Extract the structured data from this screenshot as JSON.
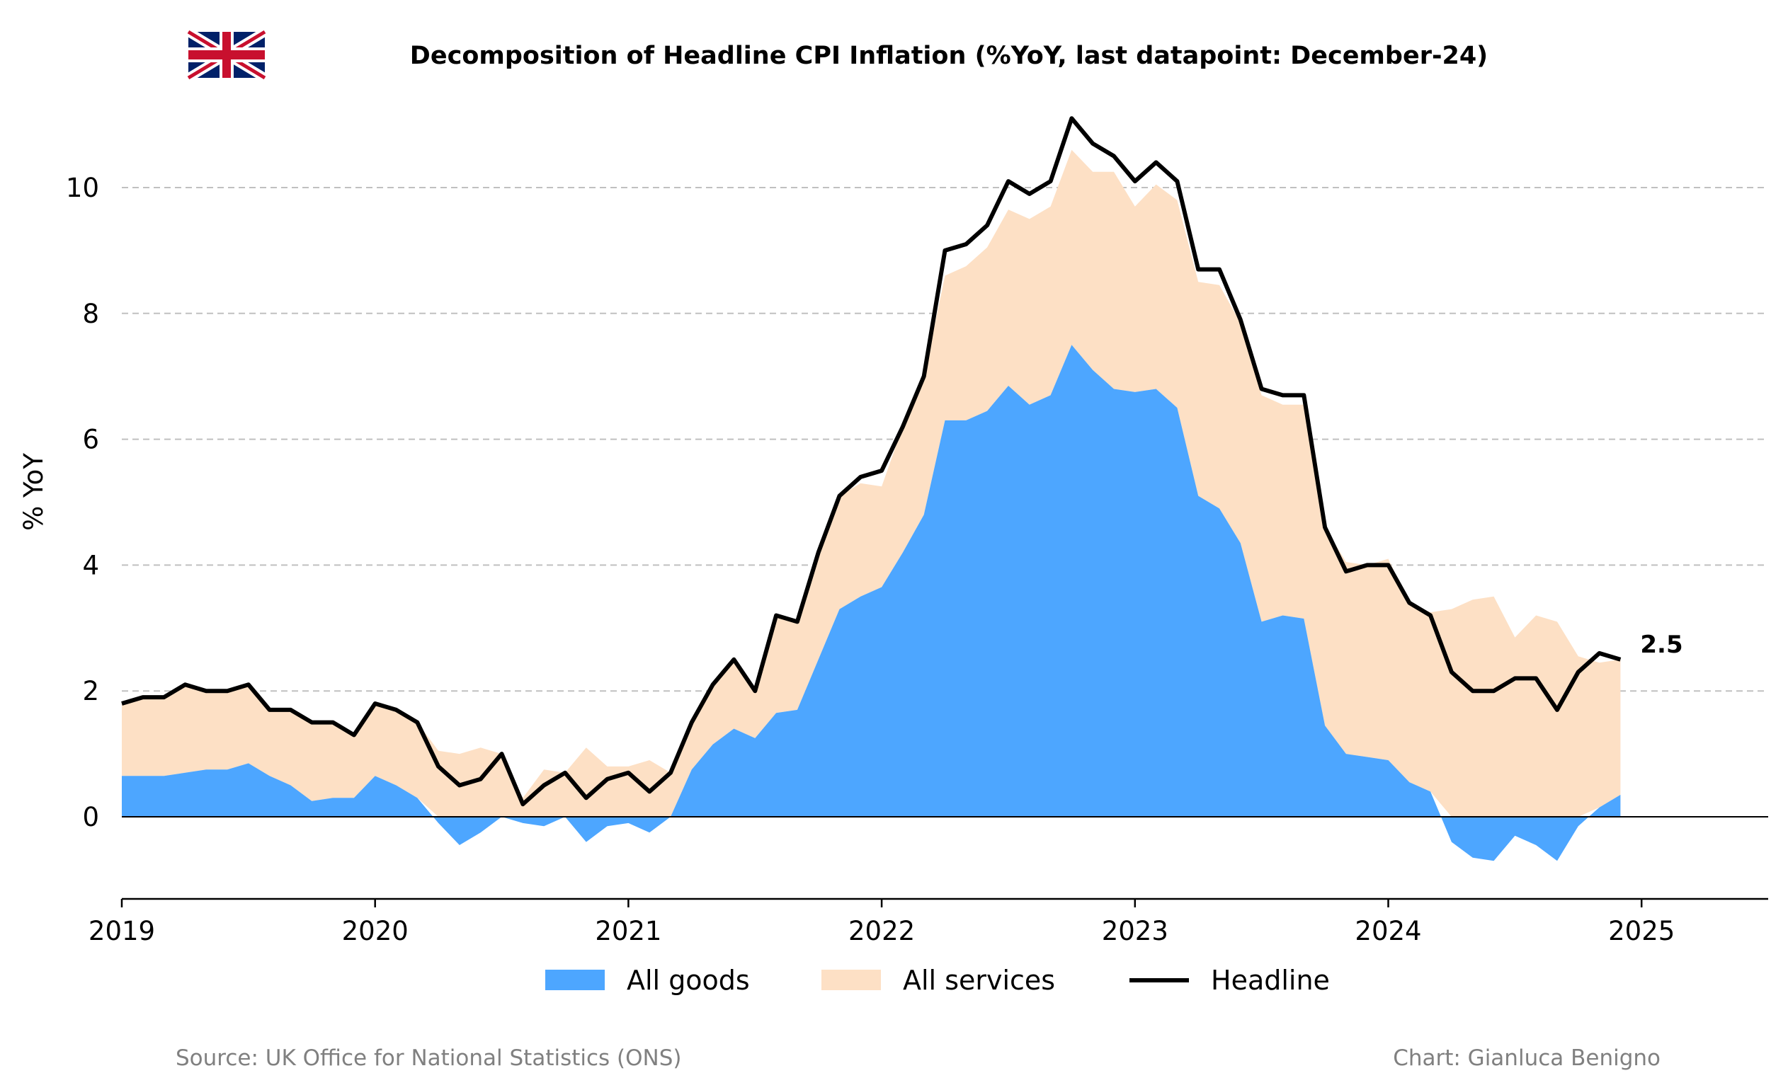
{
  "title": "Decomposition of Headline CPI Inflation (%YoY, last datapoint: December-24)",
  "source": "Source: UK Office for National Statistics (ONS)",
  "credit": "Chart: Gianluca Benigno",
  "flag_icon": "uk-flag-icon",
  "colors": {
    "goods": "#4da6ff",
    "services": "#fde0c5",
    "headline": "#000000",
    "grid": "#c0c0c0"
  },
  "chart_data": {
    "type": "area",
    "title": "Decomposition of Headline CPI Inflation (%YoY, last datapoint: December-24)",
    "ylabel": "% YoY",
    "xlabel": "",
    "ylim": [
      -1.3,
      11.3
    ],
    "yticks": [
      0,
      2,
      4,
      6,
      8,
      10
    ],
    "xticks": [
      2019,
      2020,
      2021,
      2022,
      2023,
      2024,
      2025
    ],
    "x_start": "2019-01",
    "x_end": "2024-12",
    "grid": "horizontal dashed",
    "legend_position": "bottom",
    "last_value_label": "2.5",
    "series": [
      {
        "name": "All goods",
        "kind": "area",
        "values": [
          0.65,
          0.65,
          0.65,
          0.7,
          0.75,
          0.75,
          0.85,
          0.65,
          0.5,
          0.25,
          0.3,
          0.3,
          0.65,
          0.5,
          0.3,
          -0.1,
          -0.45,
          -0.25,
          0.0,
          -0.1,
          -0.15,
          0.0,
          -0.4,
          -0.15,
          -0.1,
          -0.25,
          0.0,
          0.75,
          1.15,
          1.4,
          1.25,
          1.65,
          1.7,
          2.5,
          3.3,
          3.5,
          3.65,
          4.2,
          4.8,
          6.3,
          6.3,
          6.45,
          6.85,
          6.55,
          6.7,
          7.5,
          7.1,
          6.8,
          6.75,
          6.8,
          6.5,
          5.1,
          4.9,
          4.35,
          3.1,
          3.2,
          3.15,
          1.45,
          1.0,
          0.95,
          0.9,
          0.55,
          0.4,
          -0.4,
          -0.65,
          -0.7,
          -0.3,
          -0.45,
          -0.7,
          -0.15,
          0.15,
          0.35
        ]
      },
      {
        "name": "All services",
        "kind": "area",
        "values": [
          1.15,
          1.25,
          1.25,
          1.4,
          1.25,
          1.25,
          1.25,
          1.05,
          1.2,
          1.25,
          1.2,
          1.0,
          1.15,
          1.2,
          1.2,
          1.05,
          1.0,
          1.1,
          1.0,
          0.3,
          0.75,
          0.7,
          1.1,
          0.8,
          0.8,
          0.9,
          0.7,
          0.75,
          0.95,
          1.1,
          0.75,
          1.55,
          1.4,
          1.7,
          1.8,
          1.8,
          1.6,
          2.0,
          2.2,
          2.3,
          2.45,
          2.6,
          2.8,
          2.95,
          3.0,
          3.1,
          3.15,
          3.45,
          2.95,
          3.25,
          3.3,
          3.4,
          3.55,
          3.5,
          3.6,
          3.35,
          3.4,
          3.15,
          3.05,
          3.05,
          3.2,
          2.85,
          2.85,
          3.3,
          3.45,
          3.5,
          2.85,
          3.2,
          3.1,
          2.55,
          2.3,
          2.15
        ]
      },
      {
        "name": "Headline",
        "kind": "line",
        "values": [
          1.8,
          1.9,
          1.9,
          2.1,
          2.0,
          2.0,
          2.1,
          1.7,
          1.7,
          1.5,
          1.5,
          1.3,
          1.8,
          1.7,
          1.5,
          0.8,
          0.5,
          0.6,
          1.0,
          0.2,
          0.5,
          0.7,
          0.3,
          0.6,
          0.7,
          0.4,
          0.7,
          1.5,
          2.1,
          2.5,
          2.0,
          3.2,
          3.1,
          4.2,
          5.1,
          5.4,
          5.5,
          6.2,
          7.0,
          9.0,
          9.1,
          9.4,
          10.1,
          9.9,
          10.1,
          11.1,
          10.7,
          10.5,
          10.1,
          10.4,
          10.1,
          8.7,
          8.7,
          7.9,
          6.8,
          6.7,
          6.7,
          4.6,
          3.9,
          4.0,
          4.0,
          3.4,
          3.2,
          2.3,
          2.0,
          2.0,
          2.2,
          2.2,
          1.7,
          2.3,
          2.6,
          2.5
        ]
      }
    ]
  }
}
